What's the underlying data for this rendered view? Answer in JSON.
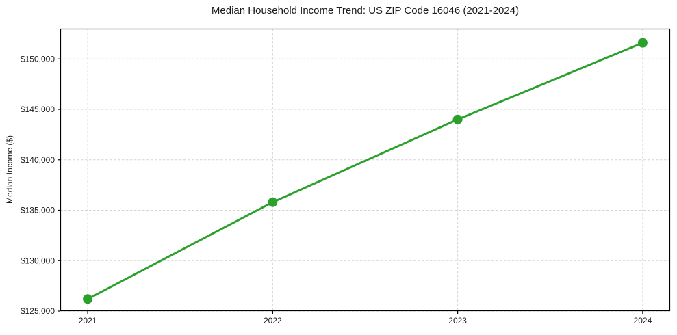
{
  "chart_data": {
    "type": "line",
    "title": "Median Household Income Trend: US ZIP Code 16046 (2021-2024)",
    "xlabel": "",
    "ylabel": "Median Income ($)",
    "categories": [
      "2021",
      "2022",
      "2023",
      "2024"
    ],
    "series": [
      {
        "name": "Median Household Income",
        "values": [
          126200,
          135800,
          144000,
          151600
        ]
      }
    ],
    "ylim": [
      125000,
      153000
    ],
    "yticks": [
      125000,
      130000,
      135000,
      140000,
      145000,
      150000
    ],
    "ytick_labels": [
      "$125,000",
      "$130,000",
      "$135,000",
      "$140,000",
      "$145,000",
      "$150,000"
    ],
    "grid": true,
    "grid_style": "dashed",
    "legend_position": "none",
    "line_color": "#2ca02c",
    "marker": "circle",
    "grid_color": "#d4d4d4",
    "spine_color": "#000000",
    "text_color": "#1a1a1a",
    "background_color": "#ffffff"
  }
}
